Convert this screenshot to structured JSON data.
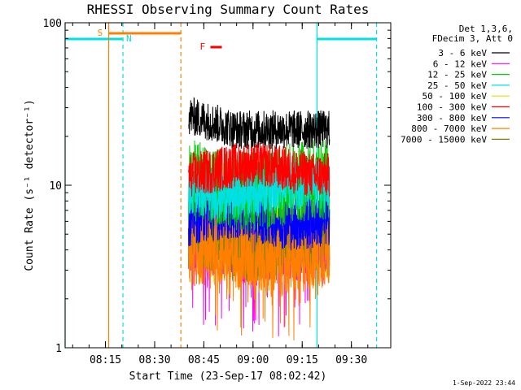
{
  "chart_data": {
    "type": "line",
    "title": "RHESSI Observing Summary Count Rates",
    "xlabel": "Start Time (23-Sep-17 08:02:42)",
    "ylabel": "Count Rate (s⁻¹ detector⁻¹)",
    "yscale": "log",
    "ylim": [
      1,
      100
    ],
    "xlim": [
      "08:02:42",
      "09:42:00"
    ],
    "x_ticks": [
      "08:15",
      "08:30",
      "08:45",
      "09:00",
      "09:15",
      "09:30"
    ],
    "y_ticks": [
      "1",
      "10",
      "100"
    ],
    "grid": false,
    "legend_position": "top-right",
    "legend_header": [
      "Det 1,3,6,",
      "FDecim 3, Att 0"
    ],
    "data_start": "08:40:20",
    "data_end": "09:23:20",
    "series": [
      {
        "name": "3 - 6 keV",
        "color": "#000000",
        "level": 22,
        "noise": 0.12
      },
      {
        "name": "6 - 12 keV",
        "color": "#ff00ff",
        "level": 4.5,
        "noise": 0.25
      },
      {
        "name": "12 - 25 keV",
        "color": "#00d000",
        "level": 10,
        "noise": 0.25
      },
      {
        "name": "25 - 50 keV",
        "color": "#00e0e0",
        "level": 9.5,
        "noise": 0.16
      },
      {
        "name": "50 - 100 keV",
        "color": "#e0e000",
        "level": 4.5,
        "noise": 0.22
      },
      {
        "name": "100 - 300 keV",
        "color": "#ff0000",
        "level": 12.5,
        "noise": 0.14
      },
      {
        "name": "300 - 800 keV",
        "color": "#0000ff",
        "level": 6.5,
        "noise": 0.18
      },
      {
        "name": "800 - 7000 keV",
        "color": "#ff8000",
        "level": 3.7,
        "noise": 0.22
      },
      {
        "name": "7000 - 15000 keV",
        "color": "#808000",
        "level": 4.3,
        "noise": 0.2
      }
    ],
    "annotations": {
      "saa": {
        "label": "S",
        "color": "#ff8000",
        "start": "08:16:00",
        "end": "08:38:00"
      },
      "night": [
        {
          "label": "N",
          "color": "#00e0e0",
          "start": "08:02:42",
          "end": "08:20:20"
        },
        {
          "label": "",
          "color": "#00e0e0",
          "start": "09:19:30",
          "end": "09:37:40"
        }
      ],
      "flare": {
        "label": "F",
        "color": "#ff0000",
        "start": "08:47:00",
        "end": "08:50:30"
      }
    },
    "footer_date": "1-Sep-2022 23:44"
  }
}
